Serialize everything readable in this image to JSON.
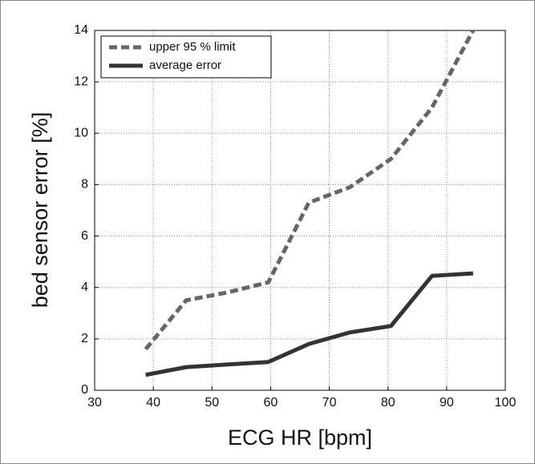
{
  "chart_data": {
    "type": "line",
    "x_label": "ECG HR [bpm]",
    "y_label": "bed sensor error [%]",
    "x": [
      38.7,
      45.6,
      52.5,
      59.6,
      66.5,
      73.5,
      80.5,
      87.5,
      94.5
    ],
    "series": [
      {
        "name": "upper 95 % limit",
        "color": "#666666",
        "linestyle": "dashed",
        "values": [
          1.6,
          3.5,
          3.8,
          4.2,
          7.3,
          7.9,
          9.0,
          11.0,
          14.0
        ]
      },
      {
        "name": "average error",
        "color": "#333333",
        "linestyle": "solid",
        "values": [
          0.6,
          0.9,
          1.0,
          1.1,
          1.8,
          2.25,
          2.5,
          4.45,
          4.55
        ]
      }
    ],
    "xlim": [
      30,
      100
    ],
    "xticks": [
      30,
      40,
      50,
      60,
      70,
      80,
      90,
      100
    ],
    "ylim": [
      0,
      14
    ],
    "yticks": [
      0,
      2,
      4,
      6,
      8,
      10,
      12,
      14
    ],
    "grid": true,
    "legend": "upper left"
  }
}
